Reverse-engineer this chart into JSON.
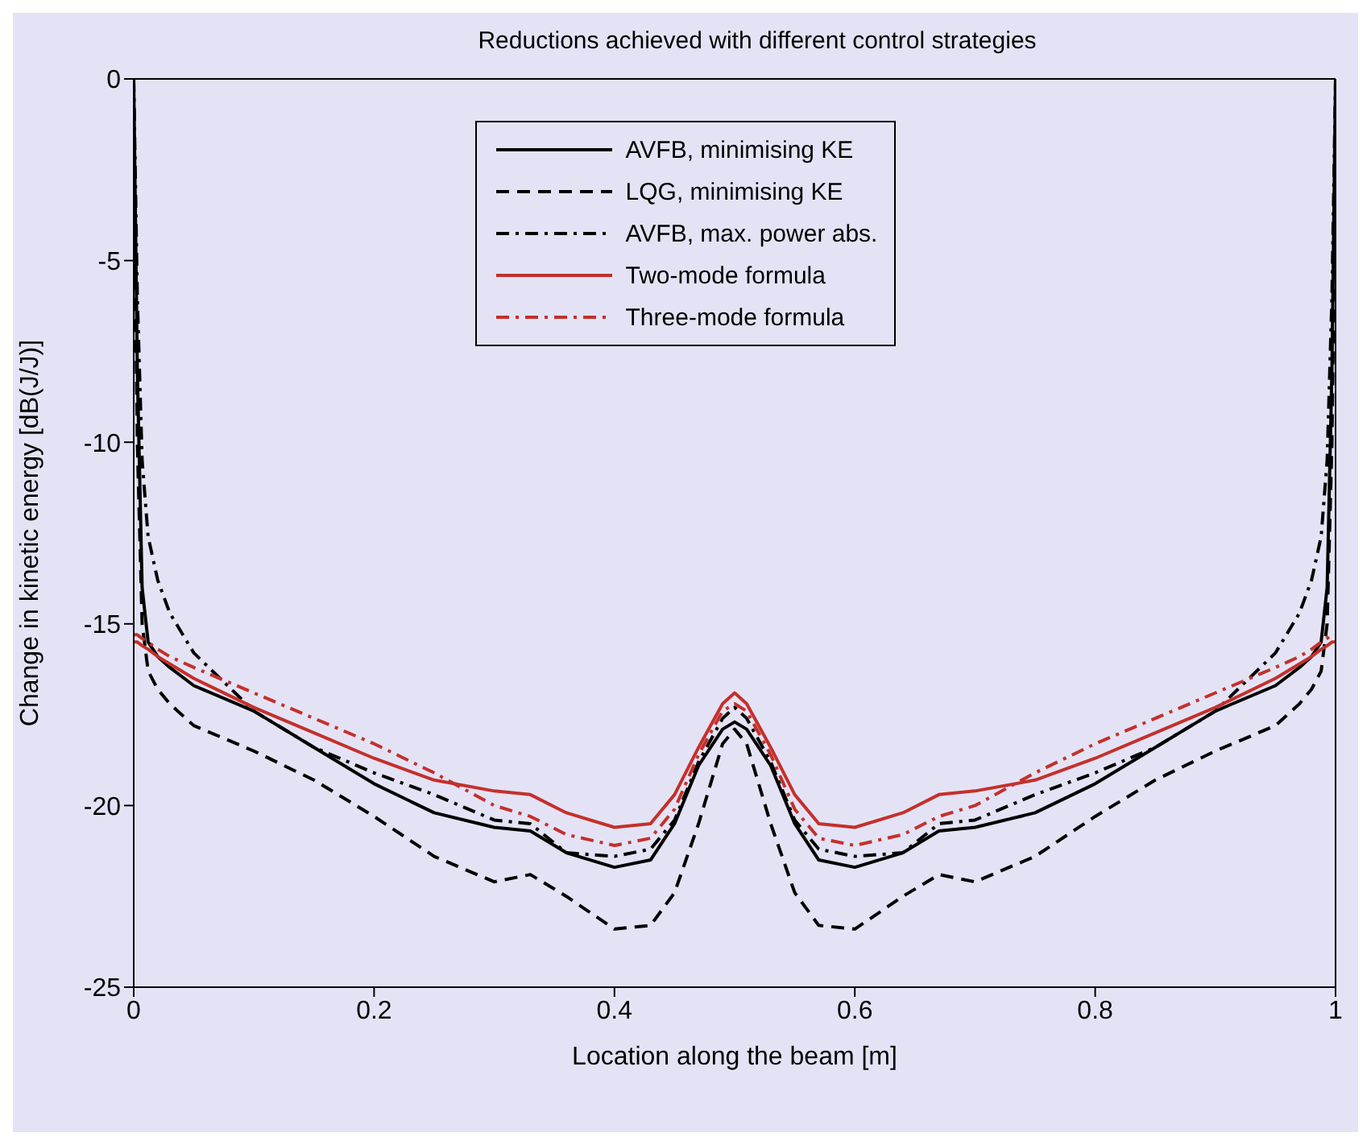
{
  "chart_data": {
    "type": "line",
    "title": "Reductions achieved with different control strategies",
    "xlabel": "Location along the beam [m]",
    "ylabel": "Change in kinetic energy [dB(J/J)]",
    "x": [
      0,
      0.003,
      0.007,
      0.012,
      0.02,
      0.03,
      0.05,
      0.1,
      0.15,
      0.2,
      0.25,
      0.3,
      0.33,
      0.36,
      0.4,
      0.43,
      0.45,
      0.47,
      0.49,
      0.5,
      0.51,
      0.53,
      0.55,
      0.57,
      0.6,
      0.64,
      0.67,
      0.7,
      0.75,
      0.8,
      0.85,
      0.9,
      0.95,
      0.97,
      0.98,
      0.988,
      0.993,
      0.997,
      1
    ],
    "series": [
      {
        "name": "AVFB, minimising KE",
        "color": "#000000",
        "line_style": "solid",
        "values": [
          0,
          -8,
          -14,
          -15.5,
          -15.9,
          -16.2,
          -16.7,
          -17.4,
          -18.4,
          -19.4,
          -20.2,
          -20.6,
          -20.7,
          -21.3,
          -21.7,
          -21.5,
          -20.5,
          -18.9,
          -17.9,
          -17.7,
          -17.9,
          -18.9,
          -20.5,
          -21.5,
          -21.7,
          -21.3,
          -20.7,
          -20.6,
          -20.2,
          -19.4,
          -18.4,
          -17.4,
          -16.7,
          -16.2,
          -15.9,
          -15.5,
          -14,
          -8,
          0
        ]
      },
      {
        "name": "LQG, minimising KE",
        "color": "#000000",
        "line_style": "dashed",
        "values": [
          -2,
          -10,
          -15,
          -16.3,
          -16.8,
          -17.2,
          -17.8,
          -18.5,
          -19.3,
          -20.3,
          -21.4,
          -22.1,
          -21.9,
          -22.5,
          -23.4,
          -23.3,
          -22.4,
          -20.5,
          -18.3,
          -17.9,
          -18.3,
          -20.5,
          -22.4,
          -23.3,
          -23.4,
          -22.5,
          -21.9,
          -22.1,
          -21.4,
          -20.3,
          -19.3,
          -18.5,
          -17.8,
          -17.2,
          -16.8,
          -16.3,
          -15,
          -10,
          -2
        ]
      },
      {
        "name": "AVFB, max. power abs.",
        "color": "#000000",
        "line_style": "dashdot",
        "values": [
          0,
          -6,
          -10.5,
          -12.6,
          -13.8,
          -14.7,
          -15.8,
          -17.4,
          -18.4,
          -19.1,
          -19.7,
          -20.4,
          -20.5,
          -21.3,
          -21.4,
          -21.2,
          -20.4,
          -18.8,
          -17.6,
          -17.3,
          -17.6,
          -18.8,
          -20.4,
          -21.2,
          -21.4,
          -21.3,
          -20.5,
          -20.4,
          -19.7,
          -19.1,
          -18.4,
          -17.4,
          -15.8,
          -14.7,
          -13.8,
          -12.6,
          -10.5,
          -6,
          0
        ]
      },
      {
        "name": "Two-mode formula",
        "color": "#c4302b",
        "line_style": "solid",
        "values": [
          -15.5,
          -15.5,
          -15.6,
          -15.7,
          -15.9,
          -16.1,
          -16.5,
          -17.3,
          -18.0,
          -18.7,
          -19.3,
          -19.6,
          -19.7,
          -20.2,
          -20.6,
          -20.5,
          -19.7,
          -18.4,
          -17.2,
          -16.9,
          -17.2,
          -18.4,
          -19.7,
          -20.5,
          -20.6,
          -20.2,
          -19.7,
          -19.6,
          -19.3,
          -18.7,
          -18.0,
          -17.3,
          -16.5,
          -16.1,
          -15.9,
          -15.7,
          -15.6,
          -15.5,
          -15.5
        ]
      },
      {
        "name": "Three-mode formula",
        "color": "#c4302b",
        "line_style": "dashdot",
        "values": [
          -15.3,
          -15.3,
          -15.4,
          -15.5,
          -15.7,
          -15.9,
          -16.2,
          -16.9,
          -17.6,
          -18.3,
          -19.1,
          -20.0,
          -20.3,
          -20.8,
          -21.1,
          -20.9,
          -20.1,
          -18.6,
          -17.4,
          -17.2,
          -17.4,
          -18.6,
          -20.1,
          -20.9,
          -21.1,
          -20.8,
          -20.3,
          -20.0,
          -19.1,
          -18.3,
          -17.6,
          -16.9,
          -16.2,
          -15.9,
          -15.7,
          -15.5,
          -15.4,
          -15.3,
          -15.3
        ]
      }
    ],
    "xlim": [
      0,
      1
    ],
    "xticks": [
      0,
      0.2,
      0.4,
      0.6,
      0.8,
      1
    ],
    "ylim": [
      -25,
      0
    ],
    "yticks": [
      -25,
      -20,
      -15,
      -10,
      -5,
      0
    ],
    "grid": false,
    "legend": "top"
  }
}
